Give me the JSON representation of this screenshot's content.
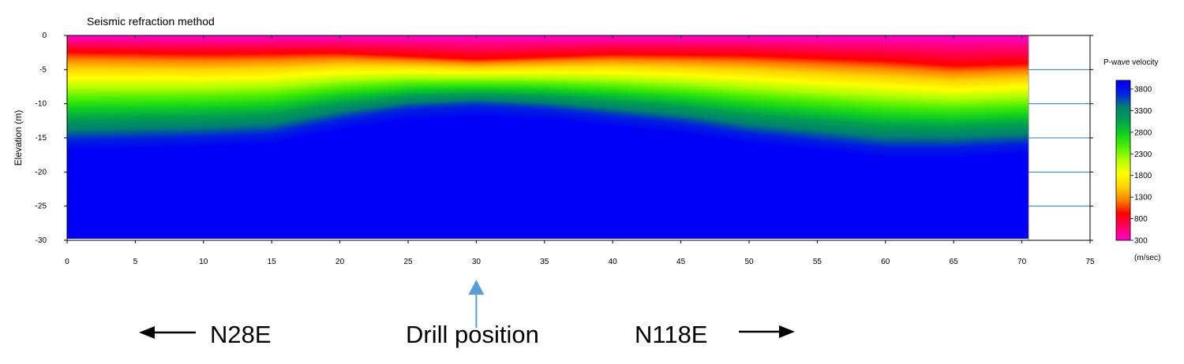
{
  "chart_data": {
    "type": "heatmap",
    "title": "Seismic refraction method",
    "xlabel": "",
    "ylabel": "Elevation (m)",
    "xlim": [
      0,
      75
    ],
    "ylim": [
      -30,
      0
    ],
    "x_ticks": [
      0,
      5,
      10,
      15,
      20,
      25,
      30,
      35,
      40,
      45,
      50,
      55,
      60,
      65,
      70,
      75
    ],
    "y_ticks": [
      0,
      -5,
      -10,
      -15,
      -20,
      -25,
      -30
    ],
    "profile_extent_x": [
      0,
      70.5
    ],
    "colorbar": {
      "title": "P-wave velocity",
      "unit": "(m/sec)",
      "range": [
        300,
        4000
      ],
      "labels": [
        3800,
        3300,
        2800,
        2300,
        1800,
        1300,
        800,
        300
      ],
      "colors": [
        "#ff00cc",
        "#ff0066",
        "#ff0000",
        "#ff8000",
        "#ffd200",
        "#ffff00",
        "#b4ff00",
        "#50f000",
        "#10d020",
        "#00a050",
        "#008070",
        "#0020e0",
        "#0000f8"
      ]
    },
    "velocity_model": {
      "description_units": "elevation in m, velocity in m/sec",
      "top_layer_bottom_depth": [
        [
          0,
          -2.5
        ],
        [
          10,
          -2.8
        ],
        [
          20,
          -2.6
        ],
        [
          30,
          -3.5
        ],
        [
          40,
          -2.8
        ],
        [
          50,
          -3.0
        ],
        [
          60,
          -3.8
        ],
        [
          65,
          -4.5
        ],
        [
          70.5,
          -4.2
        ]
      ],
      "bedrock_top_depth": [
        [
          0,
          -15
        ],
        [
          10,
          -14.5
        ],
        [
          15,
          -14
        ],
        [
          20,
          -12
        ],
        [
          25,
          -10.5
        ],
        [
          30,
          -10
        ],
        [
          35,
          -10.5
        ],
        [
          40,
          -11.5
        ],
        [
          45,
          -12.5
        ],
        [
          50,
          -14
        ],
        [
          55,
          -15
        ],
        [
          60,
          -16
        ],
        [
          65,
          -16
        ],
        [
          70.5,
          -15.5
        ]
      ],
      "surface_velocity": 300,
      "bedrock_velocity": 4000
    }
  },
  "annotations": {
    "left_direction": "N28E",
    "drill_label": "Drill position",
    "right_direction": "N118E",
    "drill_x": 30
  },
  "colors": {
    "arrow_black": "#000000",
    "drill_arrow": "#5b9bd5",
    "gridline": "#2e75b6"
  }
}
